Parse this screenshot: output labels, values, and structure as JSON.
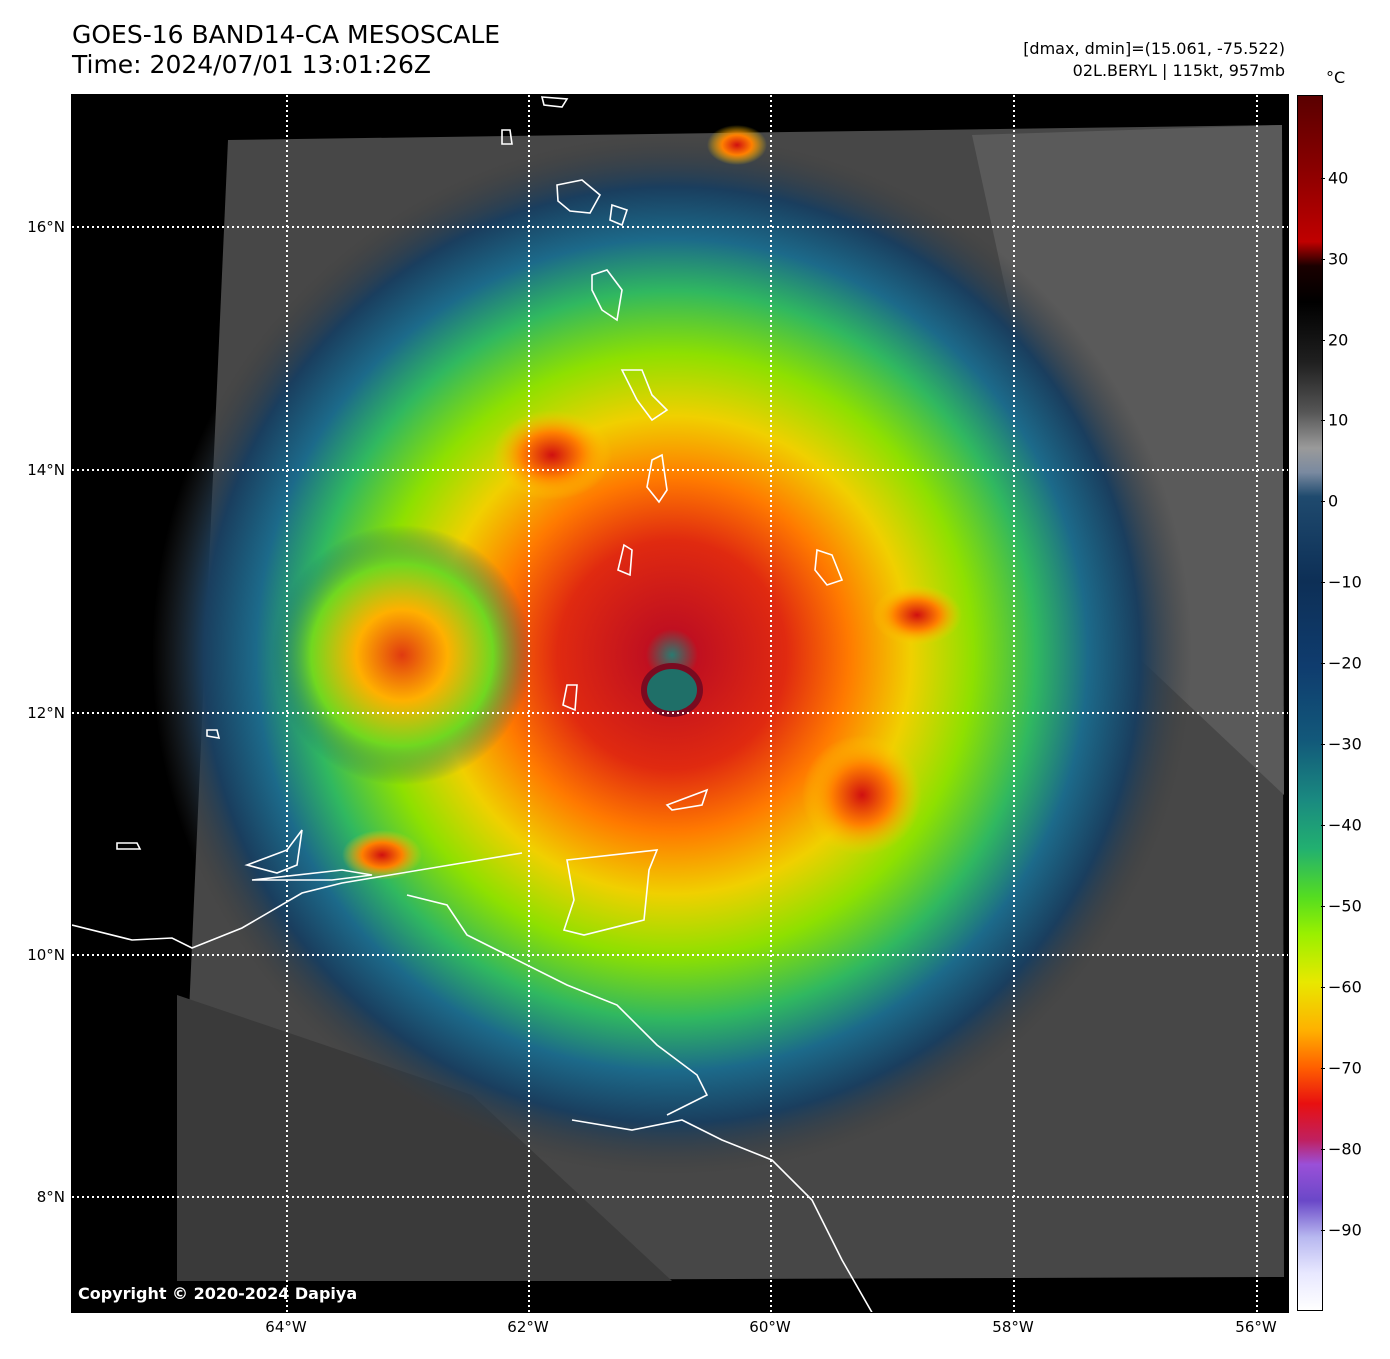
{
  "header": {
    "title_line1": "GOES-16 BAND14-CA MESOSCALE",
    "title_line2": "Time: 2024/07/01 13:01:26Z",
    "info_line1": "[dmax, dmin]=(15.061, -75.522)",
    "info_line2": "02L.BERYL | 115kt, 957mb"
  },
  "map": {
    "lat_labels": [
      "16°N",
      "14°N",
      "12°N",
      "10°N",
      "8°N"
    ],
    "lon_labels": [
      "64°W",
      "62°W",
      "60°W",
      "58°W",
      "56°W"
    ],
    "copyright": "Copyright © 2020-2024 Dapiya"
  },
  "colorbar": {
    "unit": "°C",
    "ticks": [
      "40",
      "30",
      "20",
      "10",
      "0",
      "−10",
      "−20",
      "−30",
      "−40",
      "−50",
      "−60",
      "−70",
      "−80",
      "−90"
    ]
  },
  "colors": {
    "eyewall": "#e01010",
    "cold_cloud": "#ff8c00",
    "mid_cloud": "#7ee000",
    "outer_band": "#1a5a7a",
    "clear_sky": "#4a4a4a",
    "coastline": "#ffffff"
  }
}
